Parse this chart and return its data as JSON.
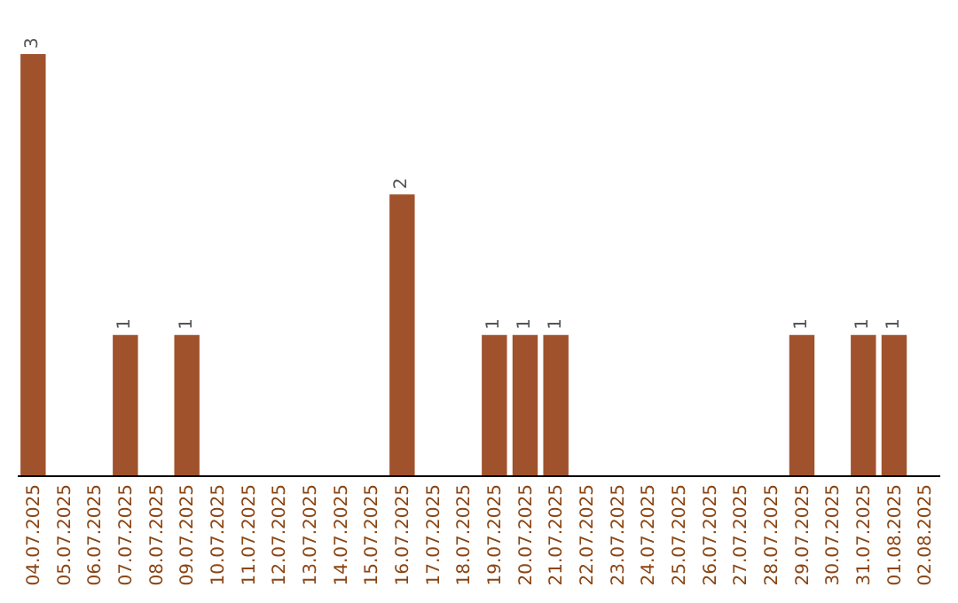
{
  "chart_data": {
    "type": "bar",
    "categories": [
      "04.07.2025",
      "05.07.2025",
      "06.07.2025",
      "07.07.2025",
      "08.07.2025",
      "09.07.2025",
      "10.07.2025",
      "11.07.2025",
      "12.07.2025",
      "13.07.2025",
      "14.07.2025",
      "15.07.2025",
      "16.07.2025",
      "17.07.2025",
      "18.07.2025",
      "19.07.2025",
      "20.07.2025",
      "21.07.2025",
      "22.07.2025",
      "23.07.2025",
      "24.07.2025",
      "25.07.2025",
      "26.07.2025",
      "27.07.2025",
      "28.07.2025",
      "29.07.2025",
      "30.07.2025",
      "31.07.2025",
      "01.08.2025",
      "02.08.2025"
    ],
    "values": [
      3,
      0,
      0,
      1,
      0,
      1,
      0,
      0,
      0,
      0,
      0,
      0,
      2,
      0,
      0,
      1,
      1,
      1,
      0,
      0,
      0,
      0,
      0,
      0,
      0,
      1,
      0,
      1,
      1,
      0
    ],
    "value_labels": [
      "3",
      null,
      null,
      "1",
      null,
      "1",
      null,
      null,
      null,
      null,
      null,
      null,
      "2",
      null,
      null,
      "1",
      "1",
      "1",
      null,
      null,
      null,
      null,
      null,
      null,
      null,
      "1",
      null,
      "1",
      "1",
      null
    ],
    "color": "#a0522d"
  }
}
